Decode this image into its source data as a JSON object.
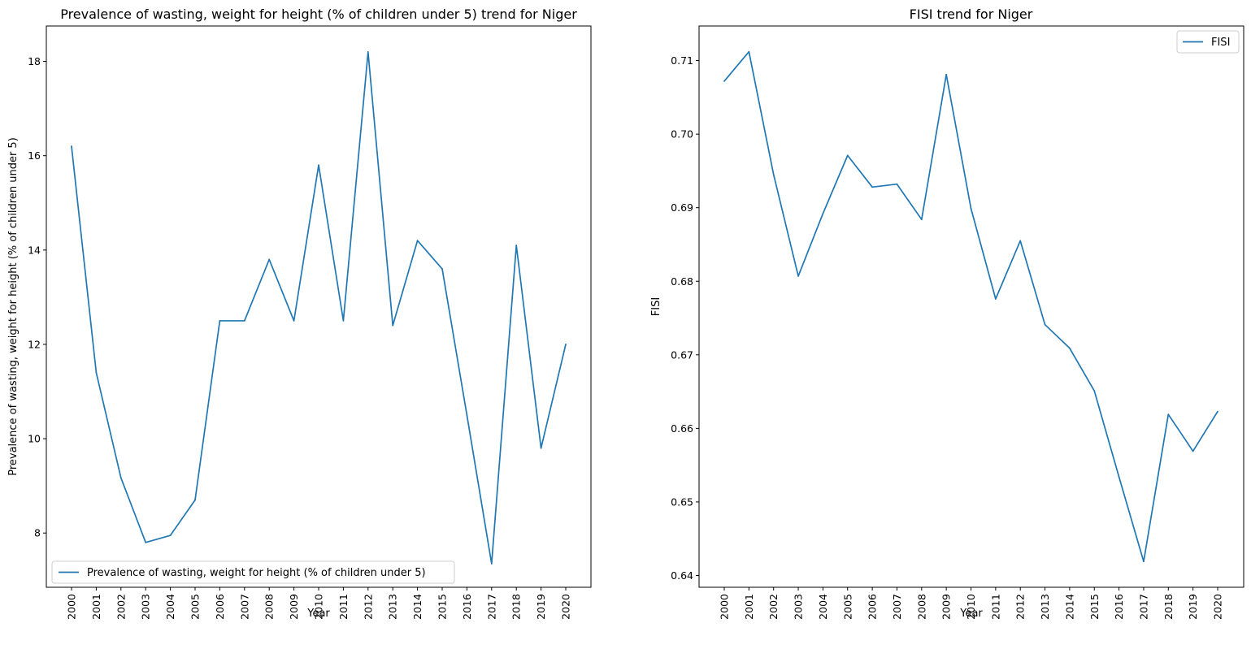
{
  "chart_data": [
    {
      "type": "line",
      "title": "Prevalence of wasting, weight for height (% of children under 5) trend for Niger",
      "xlabel": "Year",
      "ylabel": "Prevalence of wasting, weight for height (% of children under 5)",
      "x": [
        "2000",
        "2001",
        "2002",
        "2003",
        "2004",
        "2005",
        "2006",
        "2007",
        "2008",
        "2009",
        "2010",
        "2011",
        "2012",
        "2013",
        "2014",
        "2015",
        "2016",
        "2017",
        "2018",
        "2019",
        "2020"
      ],
      "series": [
        {
          "name": "Prevalence of wasting, weight for height (% of children under 5)",
          "values": [
            16.2,
            11.4,
            9.17,
            7.8,
            7.95,
            8.7,
            12.5,
            12.5,
            13.8,
            12.5,
            15.8,
            12.5,
            18.2,
            12.4,
            14.2,
            13.6,
            10.5,
            7.35,
            14.1,
            9.8,
            12.0
          ]
        }
      ],
      "ylim": [
        6.85,
        18.75
      ],
      "yticks": [
        "8",
        "10",
        "12",
        "14",
        "16",
        "18"
      ],
      "legend": "lower-left",
      "grid": false,
      "color": "#1f77b4"
    },
    {
      "type": "line",
      "title": "FISI trend for Niger",
      "xlabel": "Year",
      "ylabel": "FISI",
      "x": [
        "2000",
        "2001",
        "2002",
        "2003",
        "2004",
        "2005",
        "2006",
        "2007",
        "2008",
        "2009",
        "2010",
        "2011",
        "2012",
        "2013",
        "2014",
        "2015",
        "2016",
        "2017",
        "2018",
        "2019",
        "2020"
      ],
      "series": [
        {
          "name": "FISI",
          "values": [
            0.7072,
            0.7112,
            0.6945,
            0.6807,
            0.6892,
            0.6971,
            0.6928,
            0.6932,
            0.6884,
            0.7081,
            0.6899,
            0.6776,
            0.6855,
            0.6741,
            0.6709,
            0.6651,
            0.6534,
            0.6419,
            0.6619,
            0.6569,
            0.6623
          ]
        }
      ],
      "ylim": [
        0.6384,
        0.7147
      ],
      "yticks": [
        "0.64",
        "0.65",
        "0.66",
        "0.67",
        "0.68",
        "0.69",
        "0.70",
        "0.71"
      ],
      "legend": "upper-right",
      "grid": false,
      "color": "#1f77b4"
    }
  ]
}
